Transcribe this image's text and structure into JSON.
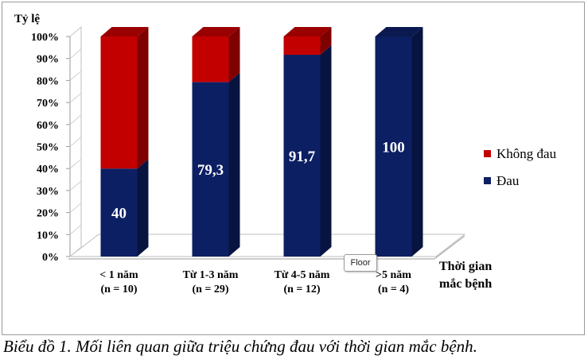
{
  "chart_data": {
    "type": "bar",
    "stacked": true,
    "three_d": true,
    "ylabel": "Tỷ lệ",
    "xlabel": [
      "Thời gian",
      "mắc bệnh"
    ],
    "yticks": [
      "0%",
      "10%",
      "20%",
      "30%",
      "40%",
      "50%",
      "60%",
      "70%",
      "80%",
      "90%",
      "100%"
    ],
    "ylim": [
      0,
      100
    ],
    "categories": [
      [
        "< 1 năm",
        "(n = 10)"
      ],
      [
        "Từ 1-3 năm",
        "(n = 29)"
      ],
      [
        "Từ   4-5 năm",
        "(n = 12)"
      ],
      [
        ">5 năm",
        "(n = 4)"
      ]
    ],
    "series": [
      {
        "name": "Đau",
        "values": [
          40,
          79.3,
          91.7,
          100
        ],
        "color": "#0d1f63"
      },
      {
        "name": "Không đau",
        "values": [
          60,
          20.7,
          8.3,
          0
        ],
        "color": "#c20000"
      }
    ],
    "data_labels": [
      "40",
      "79,3",
      "91,7",
      "100"
    ],
    "legend": {
      "position": "right",
      "order": [
        "Không đau",
        "Đau"
      ]
    },
    "grid": false
  },
  "tooltip": "Floor",
  "caption": "Biểu đồ 1. Mối liên quan giữa triệu chứng đau với thời gian mắc bệnh."
}
